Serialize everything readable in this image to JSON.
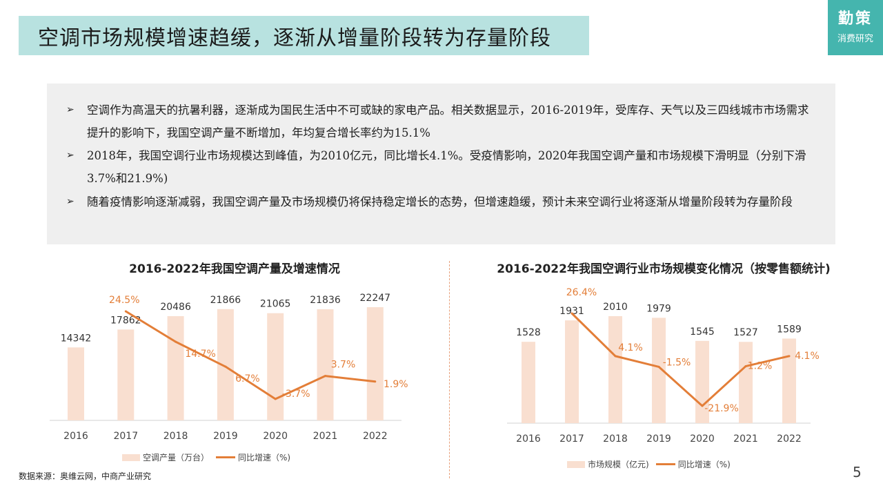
{
  "header": {
    "title": "空调市场规模增速趋缓，逐渐从增量阶段转为存量阶段",
    "logo_line1": "勤策",
    "logo_line2": "消费研究"
  },
  "intro": {
    "bullet_mark": "➢",
    "bullets": [
      "空调作为高温天的抗暑利器，逐渐成为国民生活中不可或缺的家电产品。相关数据显示，2016-2019年，受库存、天气以及三四线城市市场需求提升的影响下，我国空调产量不断增加，年均复合增长率约为15.1%",
      "2018年，我国空调行业市场规模达到峰值，为2010亿元，同比增长4.1%。受疫情影响，2020年我国空调产量和市场规模下滑明显（分别下滑3.7%和21.9%)",
      "随着疫情影响逐渐减弱，我国空调产量及市场规模仍将保持稳定增长的态势，但增速趋缓，预计未来空调行业将逐渐从增量阶段转为存量阶段"
    ]
  },
  "chart_data": [
    {
      "type": "bar",
      "title": "2016-2022年我国空调产量及增速情况",
      "categories": [
        "2016",
        "2017",
        "2018",
        "2019",
        "2020",
        "2021",
        "2022"
      ],
      "series": [
        {
          "name": "空调产量（万台）",
          "kind": "bar",
          "values": [
            14342,
            17862,
            20486,
            21866,
            21065,
            21836,
            22247
          ],
          "labels": [
            "14342",
            "17862",
            "20486",
            "21866",
            "21065",
            "21836",
            "22247"
          ]
        },
        {
          "name": "同比增速（%)",
          "kind": "line",
          "values": [
            null,
            24.5,
            14.7,
            6.7,
            -3.7,
            3.7,
            1.9
          ],
          "labels": [
            "",
            "24.5%",
            "14.7%",
            "6.7%",
            "-3.7%",
            "3.7%",
            "1.9%"
          ]
        }
      ],
      "legend": "bottom",
      "grid": false
    },
    {
      "type": "bar",
      "title": "2016-2022年我国空调行业市场规模变化情况（按零售额统计)",
      "categories": [
        "2016",
        "2017",
        "2018",
        "2019",
        "2020",
        "2021",
        "2022"
      ],
      "series": [
        {
          "name": "市场规模（亿元)",
          "kind": "bar",
          "values": [
            1528,
            1931,
            2010,
            1979,
            1545,
            1527,
            1589
          ],
          "labels": [
            "1528",
            "1931",
            "2010",
            "1979",
            "1545",
            "1527",
            "1589"
          ]
        },
        {
          "name": "同比增速（%)",
          "kind": "line",
          "values": [
            null,
            26.4,
            4.1,
            -1.5,
            -21.9,
            -1.2,
            4.1
          ],
          "labels": [
            "",
            "26.4%",
            "4.1%",
            "-1.5%",
            "-21.9%",
            "-1.2%",
            "4.1%"
          ]
        }
      ],
      "legend": "bottom",
      "grid": false
    }
  ],
  "colors": {
    "bar": "#f9dfd0",
    "line": "#e37e38",
    "title_bg": "#b8e2e0",
    "logo_bg": "#45b5ae",
    "panel_bg": "#efefef"
  },
  "footer": {
    "source": "数据来源：奥维云网，中商产业研究",
    "page_number": "5"
  }
}
